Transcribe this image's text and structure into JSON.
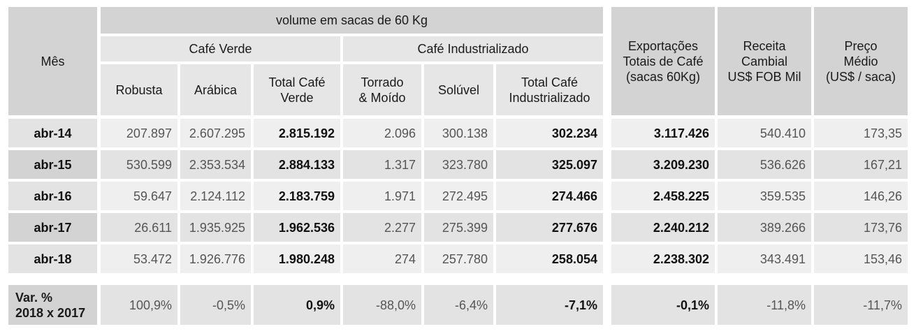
{
  "header": {
    "mes": "Mês",
    "volume": "volume em sacas de 60 Kg",
    "cafe_verde": "Café Verde",
    "cafe_industrializado": "Café Industrializado",
    "robusta": "Robusta",
    "arabica": "Arábica",
    "total_verde_l1": "Total Café",
    "total_verde_l2": "Verde",
    "torrado_l1": "Torrado",
    "torrado_l2": "& Moído",
    "soluvel": "Solúvel",
    "total_ind_l1": "Total Café",
    "total_ind_l2": "Industrializado",
    "export_l1": "Exportações",
    "export_l2": "Totais de Café",
    "export_l3": "(sacas 60Kg)",
    "receita_l1": "Receita",
    "receita_l2": "Cambial",
    "receita_l3": "US$ FOB Mil",
    "preco_l1": "Preço",
    "preco_l2": "Médio",
    "preco_l3": "(US$ / saca)"
  },
  "rows": [
    {
      "mes": "abr-14",
      "robusta": "207.897",
      "arabica": "2.607.295",
      "total_verde": "2.815.192",
      "torrado": "2.096",
      "soluvel": "300.138",
      "total_ind": "302.234",
      "export": "3.117.426",
      "receita": "540.410",
      "preco": "173,35"
    },
    {
      "mes": "abr-15",
      "robusta": "530.599",
      "arabica": "2.353.534",
      "total_verde": "2.884.133",
      "torrado": "1.317",
      "soluvel": "323.780",
      "total_ind": "325.097",
      "export": "3.209.230",
      "receita": "536.626",
      "preco": "167,21"
    },
    {
      "mes": "abr-16",
      "robusta": "59.647",
      "arabica": "2.124.112",
      "total_verde": "2.183.759",
      "torrado": "1.971",
      "soluvel": "272.495",
      "total_ind": "274.466",
      "export": "2.458.225",
      "receita": "359.535",
      "preco": "146,26"
    },
    {
      "mes": "abr-17",
      "robusta": "26.611",
      "arabica": "1.935.925",
      "total_verde": "1.962.536",
      "torrado": "2.277",
      "soluvel": "275.399",
      "total_ind": "277.676",
      "export": "2.240.212",
      "receita": "389.266",
      "preco": "173,76"
    },
    {
      "mes": "abr-18",
      "robusta": "53.472",
      "arabica": "1.926.776",
      "total_verde": "1.980.248",
      "torrado": "274",
      "soluvel": "257.780",
      "total_ind": "258.054",
      "export": "2.238.302",
      "receita": "343.491",
      "preco": "153,46"
    }
  ],
  "variation": {
    "label_l1": "Var. %",
    "label_l2": "2018 x 2017",
    "robusta": "100,9%",
    "arabica": "-0,5%",
    "total_verde": "0,9%",
    "torrado": "-88,0%",
    "soluvel": "-6,4%",
    "total_ind": "-7,1%",
    "export": "-0,1%",
    "receita": "-11,8%",
    "preco": "-11,7%"
  }
}
